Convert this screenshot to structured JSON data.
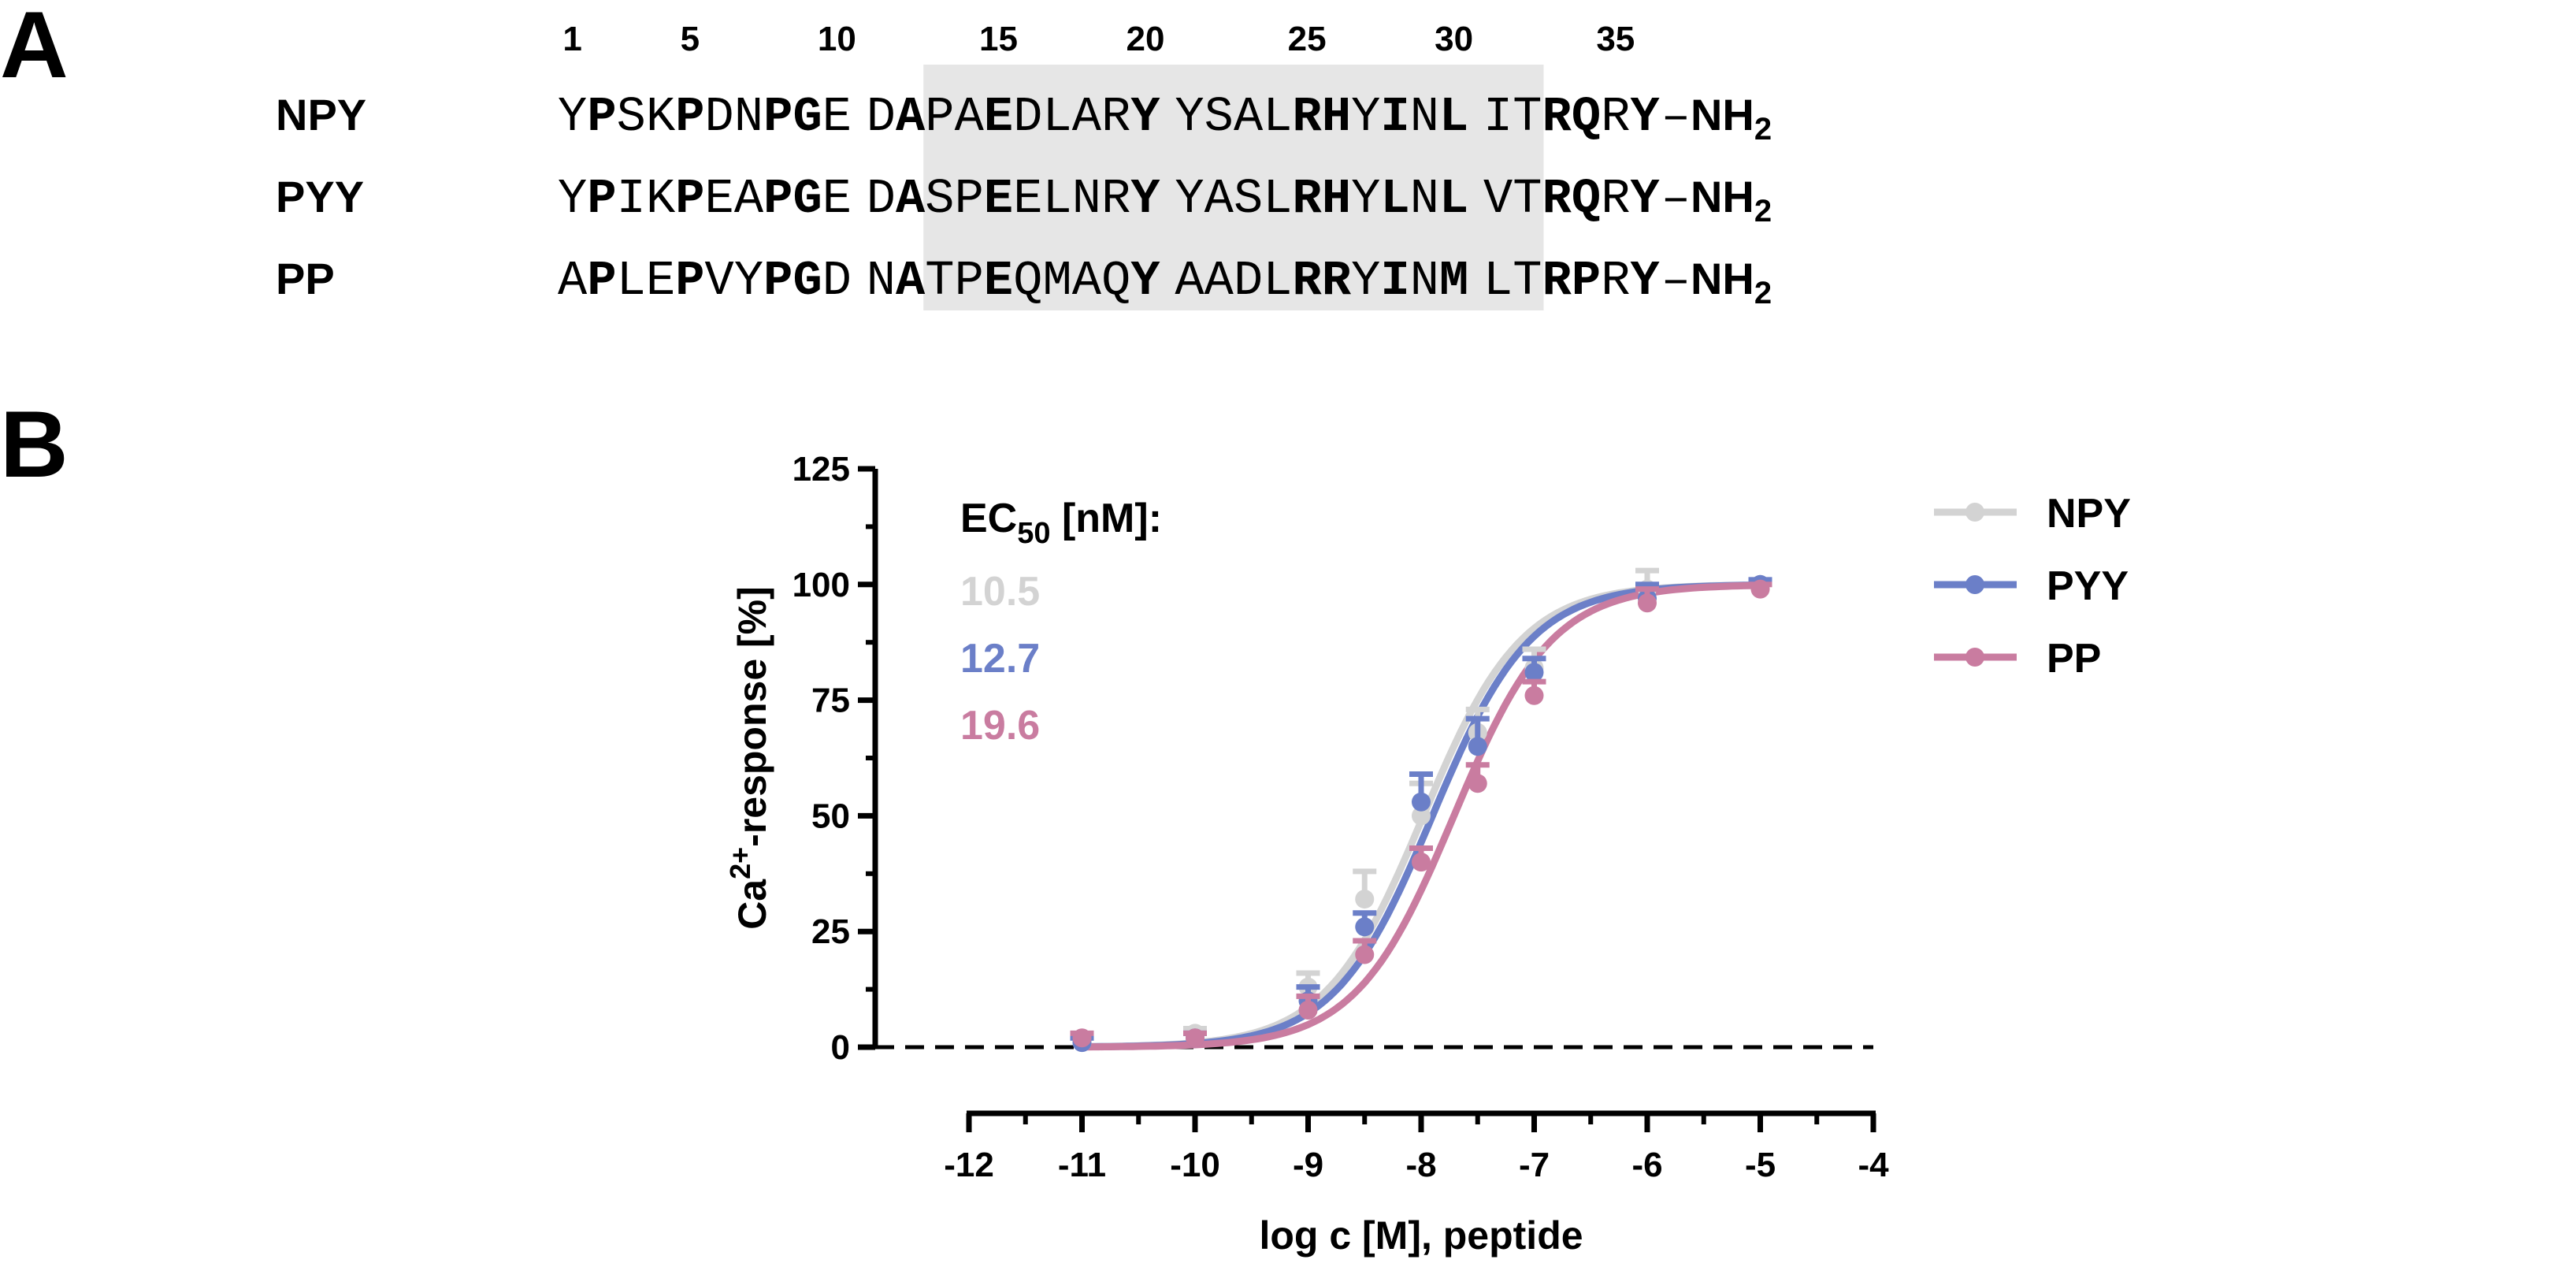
{
  "panel_a": {
    "letter": "A",
    "positions": [
      {
        "label": "1",
        "index": 0
      },
      {
        "label": "5",
        "index": 4
      },
      {
        "label": "10",
        "index": 9
      },
      {
        "label": "15",
        "index": 14
      },
      {
        "label": "20",
        "index": 19
      },
      {
        "label": "25",
        "index": 24
      },
      {
        "label": "30",
        "index": 29
      },
      {
        "label": "35",
        "index": 34
      }
    ],
    "highlight": {
      "from_index": 12,
      "to_index": 31,
      "color": "#e6e6e6"
    },
    "peptides": [
      {
        "name": "NPY",
        "sequence": "YPSKPDNPGEDAPAEDLARYYSALRHYINLITRQRY",
        "bold": [
          1,
          4,
          7,
          8,
          11,
          14,
          19,
          24,
          25,
          27,
          29,
          32,
          33,
          35
        ]
      },
      {
        "name": "PYY",
        "sequence": "YPIKPEAPGEDASPEELNRYYASLRHYLNLVTRQRY",
        "bold": [
          1,
          4,
          7,
          8,
          11,
          14,
          19,
          24,
          25,
          27,
          29,
          32,
          33,
          35
        ]
      },
      {
        "name": "PP",
        "sequence": "APLEPVYPGDNATPEQMAQYAADLRRYINMLTRPRY",
        "bold": [
          1,
          4,
          7,
          8,
          11,
          14,
          19,
          24,
          25,
          27,
          29,
          32,
          33,
          35
        ]
      }
    ],
    "c_terminus": {
      "dash": "–",
      "main": "NH",
      "subscript": "2"
    }
  },
  "panel_b": {
    "letter": "B"
  },
  "chart_data": {
    "type": "line",
    "xlabel": "log c [M], peptide",
    "ylabel_parts": {
      "pre": "Ca",
      "sup": "2+",
      "post": "-response [%]"
    },
    "xlim": [
      -12,
      -4
    ],
    "ylim": [
      0,
      125
    ],
    "xticks": [
      -12,
      -11,
      -10,
      -9,
      -8,
      -7,
      -6,
      -5,
      -4
    ],
    "xtick_labels": [
      "-12",
      "-11",
      "-10",
      "-9",
      "-8",
      "-7",
      "-6",
      "-5",
      "-4"
    ],
    "yticks": [
      0,
      25,
      50,
      75,
      100,
      125
    ],
    "ytick_labels": [
      "0",
      "25",
      "50",
      "75",
      "100",
      "125"
    ],
    "baseline": {
      "y": 0,
      "style": "dashed"
    },
    "ec50_title": {
      "pre": "EC",
      "sub": "50",
      "post": " [nM]:"
    },
    "legend_position": "top-right",
    "series": [
      {
        "name": "NPY",
        "color": "#d3d3d3",
        "ec50_nM": "10.5",
        "log_ec50": -7.98,
        "hill": 1.0,
        "points": [
          {
            "x": -11,
            "y": 1,
            "err": 1
          },
          {
            "x": -10,
            "y": 3,
            "err": 1
          },
          {
            "x": -9,
            "y": 13,
            "err": 3
          },
          {
            "x": -8.5,
            "y": 32,
            "err": 6
          },
          {
            "x": -8,
            "y": 50,
            "err": 7
          },
          {
            "x": -7.5,
            "y": 68,
            "err": 5
          },
          {
            "x": -7,
            "y": 82,
            "err": 4
          },
          {
            "x": -6,
            "y": 99,
            "err": 4
          },
          {
            "x": -5,
            "y": 100,
            "err": 1
          }
        ]
      },
      {
        "name": "PYY",
        "color": "#6b7fc8",
        "ec50_nM": "12.7",
        "log_ec50": -7.9,
        "hill": 1.0,
        "points": [
          {
            "x": -11,
            "y": 1,
            "err": 1
          },
          {
            "x": -10,
            "y": 2,
            "err": 1
          },
          {
            "x": -9,
            "y": 10,
            "err": 3
          },
          {
            "x": -8.5,
            "y": 26,
            "err": 3
          },
          {
            "x": -8,
            "y": 53,
            "err": 6
          },
          {
            "x": -7.5,
            "y": 65,
            "err": 6
          },
          {
            "x": -7,
            "y": 81,
            "err": 3
          },
          {
            "x": -6,
            "y": 97,
            "err": 3
          },
          {
            "x": -5,
            "y": 100,
            "err": 1
          }
        ]
      },
      {
        "name": "PP",
        "color": "#c97ca0",
        "ec50_nM": "19.6",
        "log_ec50": -7.71,
        "hill": 1.0,
        "points": [
          {
            "x": -11,
            "y": 2,
            "err": 1
          },
          {
            "x": -10,
            "y": 2,
            "err": 1
          },
          {
            "x": -9,
            "y": 8,
            "err": 3
          },
          {
            "x": -8.5,
            "y": 20,
            "err": 3
          },
          {
            "x": -8,
            "y": 40,
            "err": 3
          },
          {
            "x": -7.5,
            "y": 57,
            "err": 4
          },
          {
            "x": -7,
            "y": 76,
            "err": 3
          },
          {
            "x": -6,
            "y": 96,
            "err": 3
          },
          {
            "x": -5,
            "y": 99,
            "err": 1
          }
        ]
      }
    ]
  }
}
